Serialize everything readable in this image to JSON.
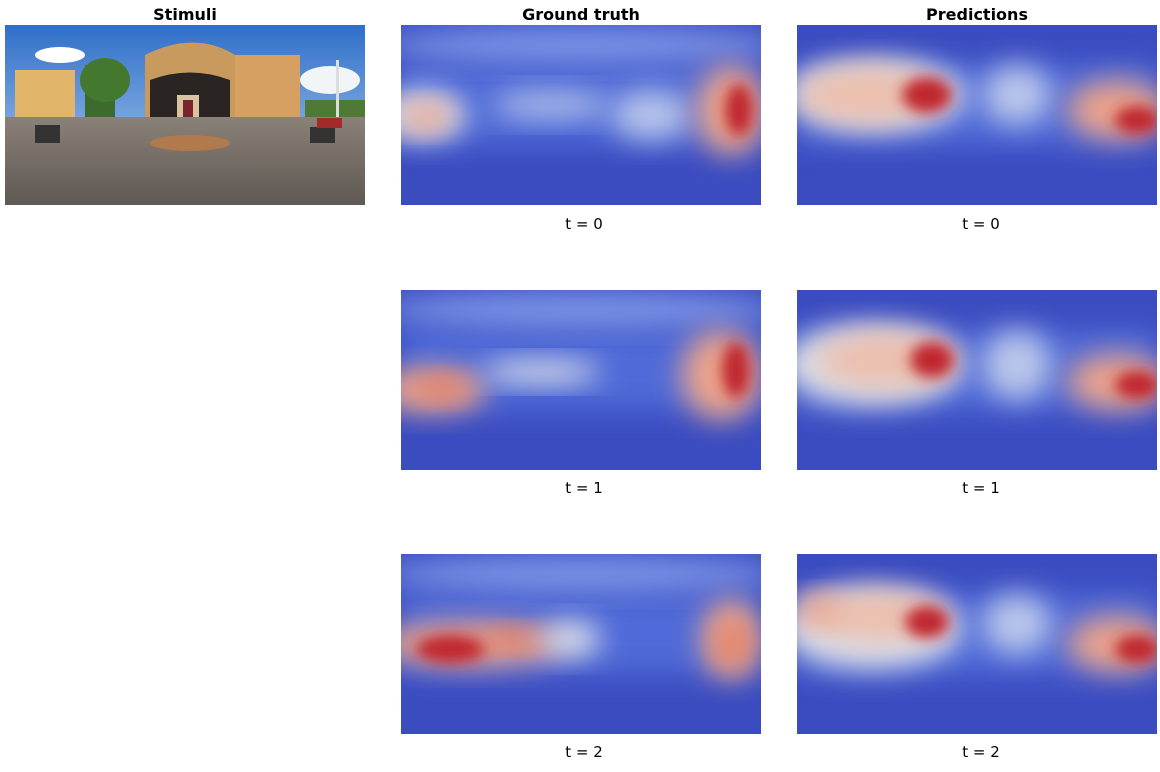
{
  "columns": {
    "stimuli": "Stimuli",
    "ground_truth": "Ground truth",
    "predictions": "Predictions"
  },
  "rows": [
    {
      "ground_truth_label": "t = 0",
      "prediction_label": "t = 0"
    },
    {
      "ground_truth_label": "t = 1",
      "prediction_label": "t = 1"
    },
    {
      "ground_truth_label": "t = 2",
      "prediction_label": "t = 2"
    }
  ]
}
